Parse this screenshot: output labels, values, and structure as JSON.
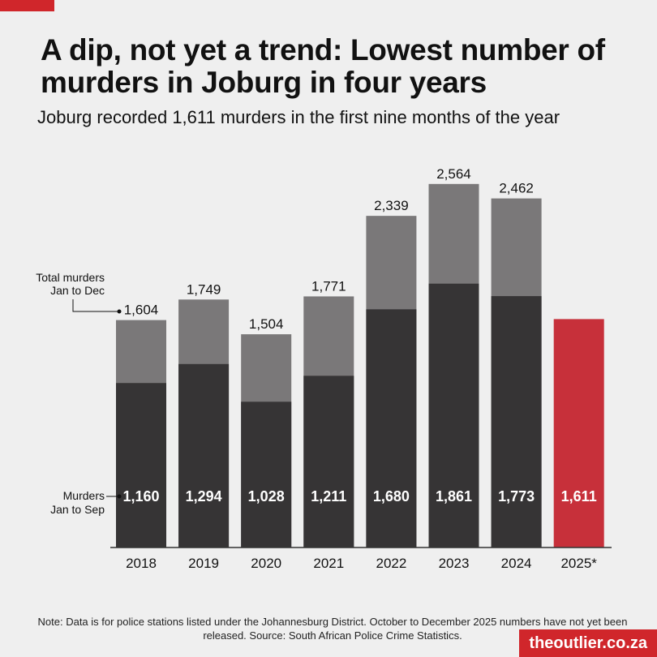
{
  "title": "A dip, not yet a trend: Lowest number of murders in Joburg in four years",
  "subtitle": "Joburg recorded 1,611 murders in the first nine months of the year",
  "note": "Note: Data is for police stations listed under the Johannesburg District. October to December 2025 numbers have not yet been released. Source: South African Police Crime Statistics.",
  "brand": "theoutlier.co.za",
  "colors": {
    "jan_sep": "#363435",
    "jan_dec": "#7a7879",
    "highlight": "#c7303a",
    "accent": "#d0262b",
    "background": "#efefef"
  },
  "chart_data": {
    "type": "bar",
    "categories": [
      "2018",
      "2019",
      "2020",
      "2021",
      "2022",
      "2023",
      "2024",
      "2025*"
    ],
    "series": [
      {
        "name": "Murders Jan to Sep",
        "values": [
          1160,
          1294,
          1028,
          1211,
          1680,
          1861,
          1773,
          1611
        ]
      },
      {
        "name": "Total murders Jan to Dec",
        "values": [
          1604,
          1749,
          1504,
          1771,
          2339,
          2564,
          2462,
          null
        ]
      }
    ],
    "data_labels_inside": [
      "1,160",
      "1,294",
      "1,028",
      "1,211",
      "1,680",
      "1,861",
      "1,773",
      "1,611"
    ],
    "data_labels_top": [
      "1,604",
      "1,749",
      "1,504",
      "1,771",
      "2,339",
      "2,564",
      "2,462",
      ""
    ],
    "annotations": {
      "total_label_line1": "Total murders",
      "total_label_line2": "Jan to Dec",
      "sep_label_line1": "Murders",
      "sep_label_line2": "Jan to Sep"
    },
    "highlight_category": "2025*",
    "ylim": [
      0,
      2600
    ],
    "grid": false,
    "legend": "none"
  }
}
